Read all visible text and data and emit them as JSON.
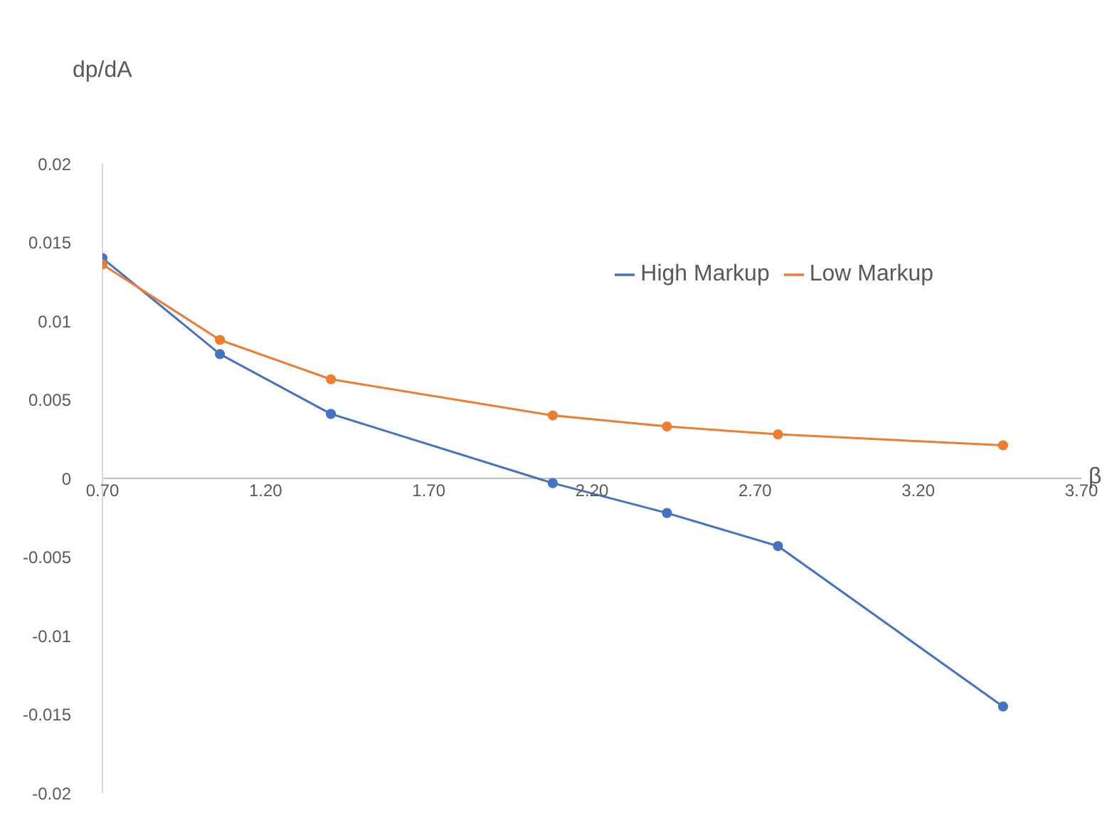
{
  "chart_data": {
    "type": "line",
    "xlabel": "β",
    "ylabel": "dp/dA",
    "xlim": [
      0.7,
      3.7
    ],
    "xticks": [
      {
        "value": 0.7,
        "label": "0.70"
      },
      {
        "value": 1.2,
        "label": "1.20"
      },
      {
        "value": 1.7,
        "label": "1.70"
      },
      {
        "value": 2.2,
        "label": "2.20"
      },
      {
        "value": 2.7,
        "label": "2.70"
      },
      {
        "value": 3.2,
        "label": "3.20"
      },
      {
        "value": 3.7,
        "label": "3.70"
      }
    ],
    "ylim": [
      -0.02,
      0.02
    ],
    "yticks": [
      -0.02,
      -0.015,
      -0.01,
      -0.005,
      0,
      0.005,
      0.01,
      0.015,
      0.02
    ],
    "x": [
      0.7,
      1.06,
      1.4,
      2.08,
      2.43,
      2.77,
      3.46
    ],
    "series": [
      {
        "name": "High Markup",
        "color": "#4472c4",
        "values": [
          0.014,
          0.0079,
          0.0041,
          -0.0003,
          -0.0022,
          -0.0043,
          -0.0145
        ]
      },
      {
        "name": "Low Markup",
        "color": "#ed7d31",
        "values": [
          0.0136,
          0.0088,
          0.0063,
          0.004,
          0.0033,
          0.0028,
          0.0021
        ]
      }
    ],
    "marker": "circle",
    "line_style": "solid",
    "legend": "top right"
  }
}
